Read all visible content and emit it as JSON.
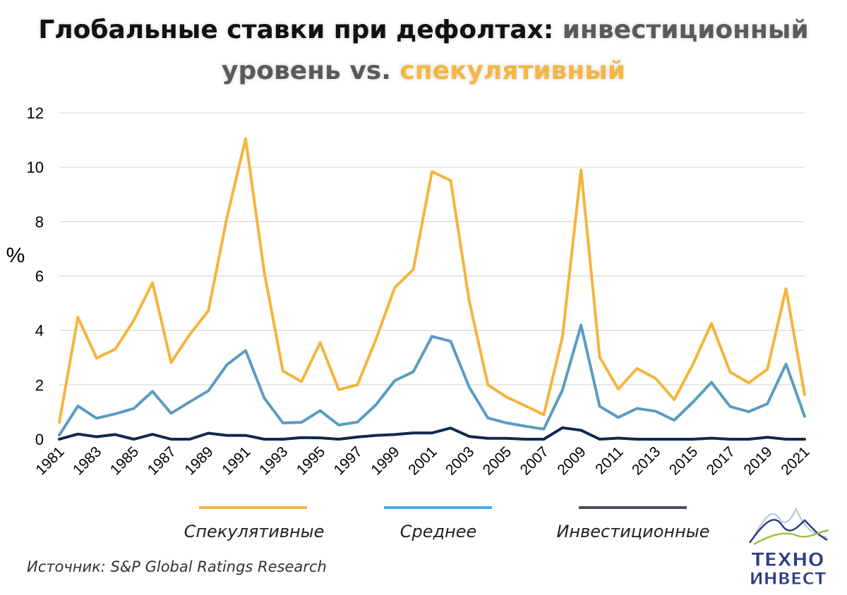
{
  "title": {
    "part1": "Глобальные ставки при дефолтах: ",
    "part2": "инвестиционный",
    "part3": "уровень vs. ",
    "part4": "спекулятивный"
  },
  "source": "Источник: S&P Global Ratings Research",
  "logo": {
    "line1": "ТЕХНО",
    "line2": "ИНВЕСТ"
  },
  "colors": {
    "speculative": "#F5B43A",
    "average": "#5A9CC2",
    "investment": "#0F2A50",
    "grid": "#D0D0D0"
  },
  "chart_data": {
    "type": "line",
    "ylabel": "%",
    "ylim": [
      0,
      12
    ],
    "yticks": [
      0,
      2,
      4,
      6,
      8,
      10,
      12
    ],
    "x": [
      1981,
      1982,
      1983,
      1984,
      1985,
      1986,
      1987,
      1988,
      1989,
      1990,
      1991,
      1992,
      1993,
      1994,
      1995,
      1996,
      1997,
      1998,
      1999,
      2000,
      2001,
      2002,
      2003,
      2004,
      2005,
      2006,
      2007,
      2008,
      2009,
      2010,
      2011,
      2012,
      2013,
      2014,
      2015,
      2016,
      2017,
      2018,
      2019,
      2020,
      2021
    ],
    "xticks": [
      1981,
      1983,
      1985,
      1987,
      1989,
      1991,
      1993,
      1995,
      1997,
      1999,
      2001,
      2003,
      2005,
      2007,
      2009,
      2011,
      2013,
      2015,
      2017,
      2019,
      2021
    ],
    "grid": true,
    "legend_position": "bottom",
    "series": [
      {
        "name": "Спекулятивные",
        "color": "#F5B43A",
        "values": [
          0.62,
          4.48,
          2.98,
          3.31,
          4.37,
          5.75,
          2.82,
          3.85,
          4.72,
          8.16,
          11.05,
          6.13,
          2.51,
          2.12,
          3.55,
          1.82,
          2.0,
          3.68,
          5.57,
          6.24,
          9.84,
          9.51,
          5.08,
          2.0,
          1.55,
          1.23,
          0.9,
          3.75,
          9.9,
          3.02,
          1.84,
          2.6,
          2.24,
          1.45,
          2.75,
          4.25,
          2.47,
          2.07,
          2.57,
          5.53,
          1.64
        ]
      },
      {
        "name": "Среднее",
        "color": "#5A9CC2",
        "values": [
          0.15,
          1.22,
          0.77,
          0.93,
          1.13,
          1.76,
          0.95,
          1.37,
          1.78,
          2.74,
          3.26,
          1.51,
          0.6,
          0.62,
          1.05,
          0.52,
          0.63,
          1.27,
          2.15,
          2.48,
          3.78,
          3.6,
          1.91,
          0.78,
          0.6,
          0.48,
          0.37,
          1.8,
          4.19,
          1.21,
          0.8,
          1.13,
          1.03,
          0.7,
          1.36,
          2.09,
          1.2,
          1.01,
          1.3,
          2.76,
          0.84
        ]
      },
      {
        "name": "Инвестиционные",
        "color": "#0F2A50",
        "values": [
          0.0,
          0.19,
          0.09,
          0.17,
          0.0,
          0.18,
          0.0,
          0.0,
          0.22,
          0.14,
          0.14,
          0.0,
          0.0,
          0.06,
          0.05,
          0.0,
          0.08,
          0.14,
          0.17,
          0.23,
          0.23,
          0.41,
          0.1,
          0.03,
          0.03,
          0.0,
          0.0,
          0.42,
          0.33,
          0.0,
          0.04,
          0.0,
          0.0,
          0.0,
          0.0,
          0.04,
          0.0,
          0.0,
          0.07,
          0.0,
          0.0
        ]
      }
    ]
  }
}
